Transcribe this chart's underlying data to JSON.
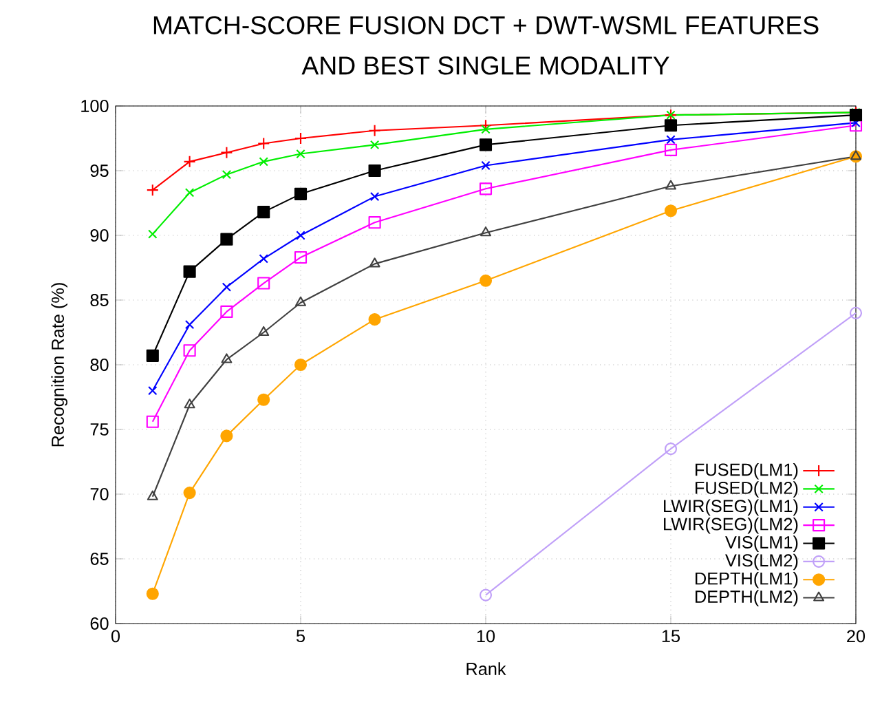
{
  "chart_data": {
    "type": "line",
    "title": "MATCH-SCORE FUSION DCT + DWT-WSML FEATURES\nAND BEST SINGLE MODALITY",
    "xlabel": "Rank",
    "ylabel": "Recognition Rate (%)",
    "x": [
      1,
      2,
      3,
      4,
      5,
      7,
      10,
      15,
      20
    ],
    "xlim": [
      0,
      20
    ],
    "ylim": [
      60,
      100
    ],
    "xticks": [
      0,
      5,
      10,
      15,
      20
    ],
    "yticks": [
      60,
      65,
      70,
      75,
      80,
      85,
      90,
      95,
      100
    ],
    "grid": true,
    "legend": "bottom right",
    "line_style": "solid",
    "series": [
      {
        "name": "FUSED(LM1)",
        "color": "#ff0000",
        "marker": "plus",
        "values": [
          93.5,
          95.7,
          96.4,
          97.1,
          97.5,
          98.1,
          98.5,
          99.3,
          99.5
        ]
      },
      {
        "name": "FUSED(LM2)",
        "color": "#00ee00",
        "marker": "cross",
        "values": [
          90.1,
          93.3,
          94.7,
          95.7,
          96.3,
          97.0,
          98.2,
          99.3,
          99.5
        ]
      },
      {
        "name": "LWIR(SEG)(LM1)",
        "color": "#0000ff",
        "marker": "cross",
        "values": [
          78.0,
          83.1,
          86.0,
          88.2,
          90.0,
          93.0,
          95.4,
          97.4,
          98.7
        ]
      },
      {
        "name": "LWIR(SEG)(LM2)",
        "color": "#ff00ff",
        "marker": "square",
        "values": [
          75.6,
          81.1,
          84.1,
          86.3,
          88.3,
          91.0,
          93.6,
          96.6,
          98.5
        ]
      },
      {
        "name": "VIS(LM1)",
        "color": "#000000",
        "marker": "square_filled",
        "values": [
          80.7,
          87.2,
          89.7,
          91.8,
          93.2,
          95.0,
          97.0,
          98.5,
          99.3
        ]
      },
      {
        "name": "VIS(LM2)",
        "color": "#c0a0f8",
        "marker": "circle",
        "x": [
          10,
          15,
          20
        ],
        "values": [
          62.2,
          73.5,
          84.0
        ]
      },
      {
        "name": "DEPTH(LM1)",
        "color": "#ffa500",
        "marker": "circle_filled",
        "values": [
          62.3,
          70.1,
          74.5,
          77.3,
          80.0,
          83.5,
          86.5,
          91.9,
          96.1
        ]
      },
      {
        "name": "DEPTH(LM2)",
        "color": "#404040",
        "marker": "triangle",
        "values": [
          69.8,
          76.9,
          80.4,
          82.5,
          84.8,
          87.8,
          90.2,
          93.8,
          96.1
        ]
      }
    ]
  }
}
